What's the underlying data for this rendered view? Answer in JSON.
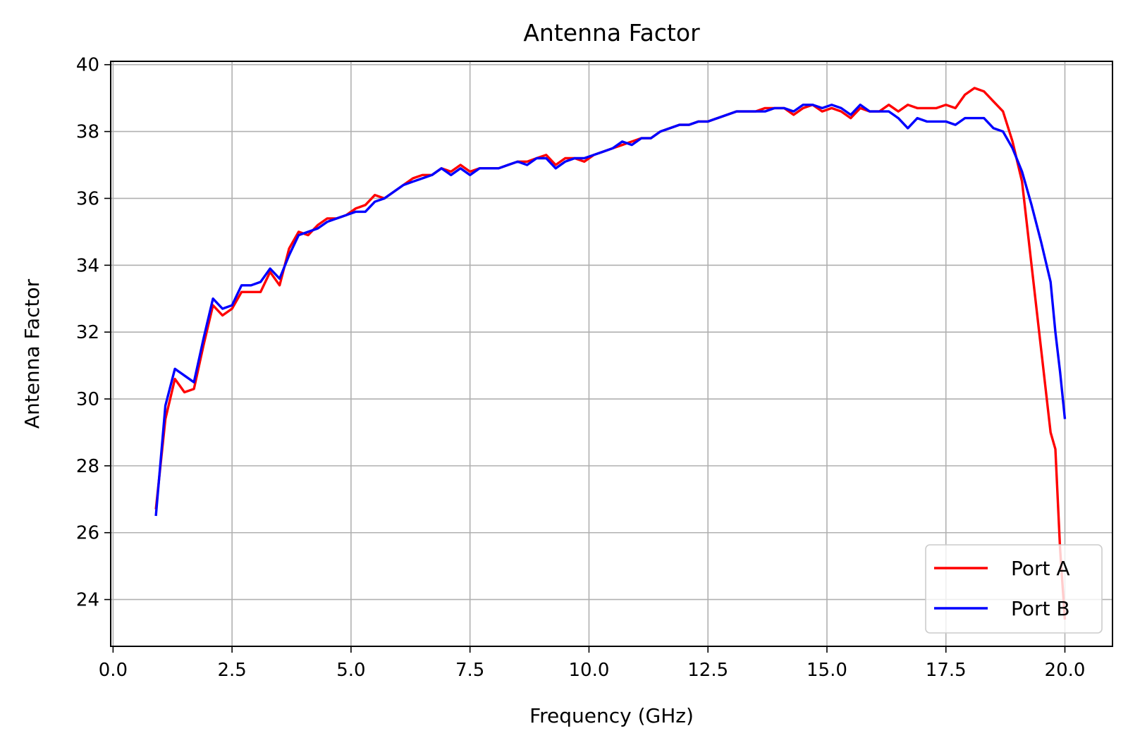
{
  "chart_data": {
    "type": "line",
    "title": "Antenna Factor",
    "xlabel": "Frequency (GHz)",
    "ylabel": "Antenna Factor",
    "xlim": [
      -0.05,
      21.0
    ],
    "ylim": [
      22.6,
      40.1
    ],
    "xticks": [
      0.0,
      2.5,
      5.0,
      7.5,
      10.0,
      12.5,
      15.0,
      17.5,
      20.0
    ],
    "xtick_labels": [
      "0.0",
      "2.5",
      "5.0",
      "7.5",
      "10.0",
      "12.5",
      "15.0",
      "17.5",
      "20.0"
    ],
    "yticks": [
      24,
      26,
      28,
      30,
      32,
      34,
      36,
      38,
      40
    ],
    "ytick_labels": [
      "24",
      "26",
      "28",
      "30",
      "32",
      "34",
      "36",
      "38",
      "40"
    ],
    "grid": true,
    "legend_position": "lower-right",
    "series": [
      {
        "name": "Port A",
        "color": "#ff0000",
        "x": [
          0.9,
          1.1,
          1.3,
          1.5,
          1.7,
          1.9,
          2.1,
          2.3,
          2.5,
          2.7,
          2.9,
          3.1,
          3.3,
          3.5,
          3.7,
          3.9,
          4.1,
          4.3,
          4.5,
          4.7,
          4.9,
          5.1,
          5.3,
          5.5,
          5.7,
          5.9,
          6.1,
          6.3,
          6.5,
          6.7,
          6.9,
          7.1,
          7.3,
          7.5,
          7.7,
          7.9,
          8.1,
          8.3,
          8.5,
          8.7,
          8.9,
          9.1,
          9.3,
          9.5,
          9.7,
          9.9,
          10.1,
          10.3,
          10.5,
          10.7,
          10.9,
          11.1,
          11.3,
          11.5,
          11.7,
          11.9,
          12.1,
          12.3,
          12.5,
          12.7,
          12.9,
          13.1,
          13.3,
          13.5,
          13.7,
          13.9,
          14.1,
          14.3,
          14.5,
          14.7,
          14.9,
          15.1,
          15.3,
          15.5,
          15.7,
          15.9,
          16.1,
          16.3,
          16.5,
          16.7,
          16.9,
          17.1,
          17.3,
          17.5,
          17.7,
          17.9,
          18.1,
          18.3,
          18.5,
          18.7,
          18.9,
          19.1,
          19.3,
          19.5,
          19.7,
          19.8,
          19.9,
          20.0
        ],
        "values": [
          26.7,
          29.4,
          30.6,
          30.2,
          30.3,
          31.6,
          32.8,
          32.5,
          32.7,
          33.2,
          33.2,
          33.2,
          33.8,
          33.4,
          34.5,
          35.0,
          34.9,
          35.2,
          35.4,
          35.4,
          35.5,
          35.7,
          35.8,
          36.1,
          36.0,
          36.2,
          36.4,
          36.6,
          36.7,
          36.7,
          36.9,
          36.8,
          37.0,
          36.8,
          36.9,
          36.9,
          36.9,
          37.0,
          37.1,
          37.1,
          37.2,
          37.3,
          37.0,
          37.2,
          37.2,
          37.1,
          37.3,
          37.4,
          37.5,
          37.6,
          37.7,
          37.8,
          37.8,
          38.0,
          38.1,
          38.2,
          38.2,
          38.3,
          38.3,
          38.4,
          38.5,
          38.6,
          38.6,
          38.6,
          38.7,
          38.7,
          38.7,
          38.5,
          38.7,
          38.8,
          38.6,
          38.7,
          38.6,
          38.4,
          38.7,
          38.6,
          38.6,
          38.8,
          38.6,
          38.8,
          38.7,
          38.7,
          38.7,
          38.8,
          38.7,
          39.1,
          39.3,
          39.2,
          38.9,
          38.6,
          37.7,
          36.5,
          34.0,
          31.5,
          29.0,
          28.5,
          25.5,
          23.4
        ]
      },
      {
        "name": "Port B",
        "color": "#0000ff",
        "x": [
          0.9,
          1.1,
          1.3,
          1.5,
          1.7,
          1.9,
          2.1,
          2.3,
          2.5,
          2.7,
          2.9,
          3.1,
          3.3,
          3.5,
          3.7,
          3.9,
          4.1,
          4.3,
          4.5,
          4.7,
          4.9,
          5.1,
          5.3,
          5.5,
          5.7,
          5.9,
          6.1,
          6.3,
          6.5,
          6.7,
          6.9,
          7.1,
          7.3,
          7.5,
          7.7,
          7.9,
          8.1,
          8.3,
          8.5,
          8.7,
          8.9,
          9.1,
          9.3,
          9.5,
          9.7,
          9.9,
          10.1,
          10.3,
          10.5,
          10.7,
          10.9,
          11.1,
          11.3,
          11.5,
          11.7,
          11.9,
          12.1,
          12.3,
          12.5,
          12.7,
          12.9,
          13.1,
          13.3,
          13.5,
          13.7,
          13.9,
          14.1,
          14.3,
          14.5,
          14.7,
          14.9,
          15.1,
          15.3,
          15.5,
          15.7,
          15.9,
          16.1,
          16.3,
          16.5,
          16.7,
          16.9,
          17.1,
          17.3,
          17.5,
          17.7,
          17.9,
          18.1,
          18.3,
          18.5,
          18.7,
          18.9,
          19.1,
          19.3,
          19.5,
          19.7,
          19.8,
          19.9,
          20.0
        ],
        "values": [
          26.5,
          29.8,
          30.9,
          30.7,
          30.5,
          31.8,
          33.0,
          32.7,
          32.8,
          33.4,
          33.4,
          33.5,
          33.9,
          33.6,
          34.3,
          34.9,
          35.0,
          35.1,
          35.3,
          35.4,
          35.5,
          35.6,
          35.6,
          35.9,
          36.0,
          36.2,
          36.4,
          36.5,
          36.6,
          36.7,
          36.9,
          36.7,
          36.9,
          36.7,
          36.9,
          36.9,
          36.9,
          37.0,
          37.1,
          37.0,
          37.2,
          37.2,
          36.9,
          37.1,
          37.2,
          37.2,
          37.3,
          37.4,
          37.5,
          37.7,
          37.6,
          37.8,
          37.8,
          38.0,
          38.1,
          38.2,
          38.2,
          38.3,
          38.3,
          38.4,
          38.5,
          38.6,
          38.6,
          38.6,
          38.6,
          38.7,
          38.7,
          38.6,
          38.8,
          38.8,
          38.7,
          38.8,
          38.7,
          38.5,
          38.8,
          38.6,
          38.6,
          38.6,
          38.4,
          38.1,
          38.4,
          38.3,
          38.3,
          38.3,
          38.2,
          38.4,
          38.4,
          38.4,
          38.1,
          38.0,
          37.5,
          36.8,
          35.8,
          34.7,
          33.5,
          32.0,
          30.8,
          29.4
        ]
      }
    ]
  }
}
